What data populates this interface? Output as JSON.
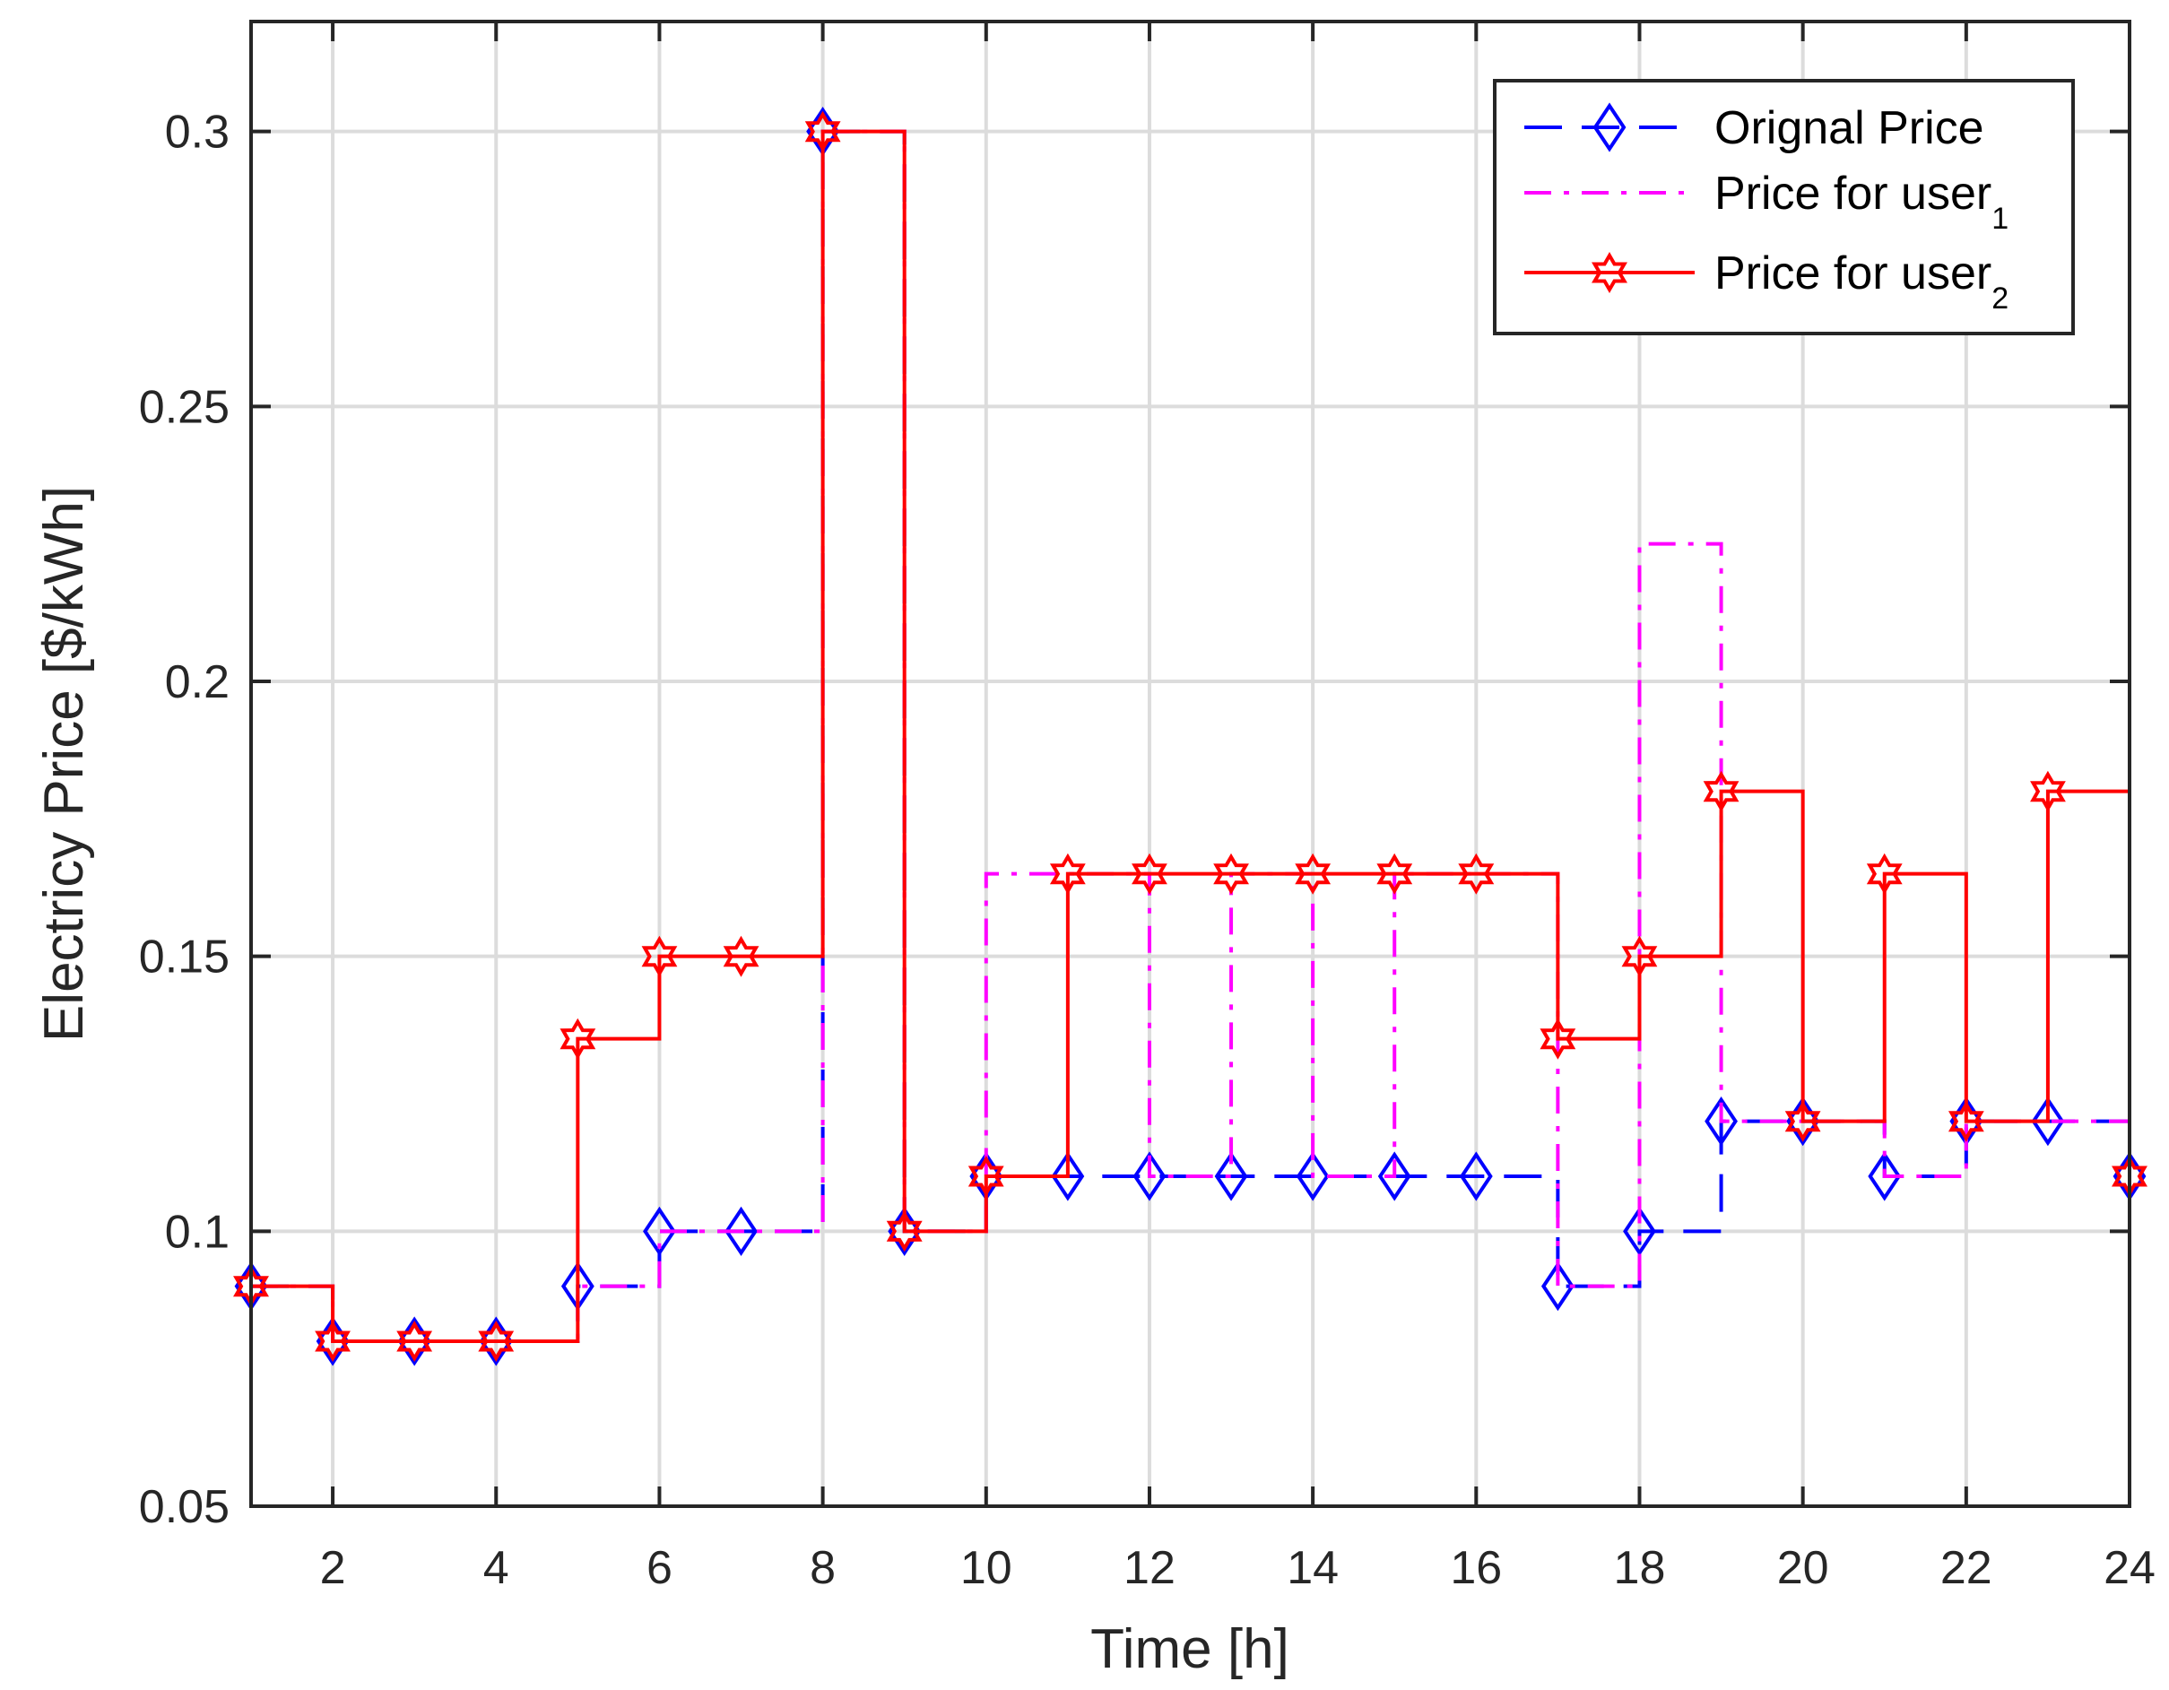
{
  "chart_data": {
    "type": "line",
    "step": "post",
    "xlabel": "Time [h]",
    "ylabel": "Electricy Price [$/kWh]",
    "xlim": [
      1,
      24
    ],
    "ylim": [
      0.05,
      0.32
    ],
    "xticks": [
      2,
      4,
      6,
      8,
      10,
      12,
      14,
      16,
      18,
      20,
      22,
      24
    ],
    "xtick_labels": [
      "2",
      "4",
      "6",
      "8",
      "10",
      "12",
      "14",
      "16",
      "18",
      "20",
      "22",
      "24"
    ],
    "yticks": [
      0.05,
      0.1,
      0.15,
      0.2,
      0.25,
      0.3
    ],
    "ytick_labels": [
      "0.05",
      "0.1",
      "0.15",
      "0.2",
      "0.25",
      "0.3"
    ],
    "grid": true,
    "legend_position": "top-right",
    "x": [
      1,
      2,
      3,
      4,
      5,
      6,
      7,
      8,
      9,
      10,
      11,
      12,
      13,
      14,
      15,
      16,
      17,
      18,
      19,
      20,
      21,
      22,
      23,
      24
    ],
    "series": [
      {
        "name": "Orignal Price",
        "color": "#0000ff",
        "line_style": "dashed",
        "marker": "diamond",
        "values": [
          0.09,
          0.08,
          0.08,
          0.08,
          0.09,
          0.1,
          0.1,
          0.3,
          0.1,
          0.11,
          0.11,
          0.11,
          0.11,
          0.11,
          0.11,
          0.11,
          0.09,
          0.1,
          0.12,
          0.12,
          0.11,
          0.12,
          0.12,
          0.11
        ]
      },
      {
        "name": "Price for user",
        "name_subscript": "1",
        "color": "#ff00ff",
        "line_style": "dash-dot",
        "marker": "none",
        "values": [
          0.09,
          0.08,
          0.08,
          0.08,
          0.09,
          0.1,
          0.1,
          0.3,
          0.1,
          0.165,
          0.165,
          0.11,
          0.165,
          0.11,
          0.165,
          0.165,
          0.09,
          0.225,
          0.12,
          0.12,
          0.11,
          0.12,
          0.12,
          0.11
        ]
      },
      {
        "name": "Price for user",
        "name_subscript": "2",
        "color": "#ff0000",
        "line_style": "solid",
        "marker": "hexagram",
        "values": [
          0.09,
          0.08,
          0.08,
          0.08,
          0.135,
          0.15,
          0.15,
          0.3,
          0.1,
          0.11,
          0.165,
          0.165,
          0.165,
          0.165,
          0.165,
          0.165,
          0.135,
          0.15,
          0.18,
          0.12,
          0.165,
          0.12,
          0.18,
          0.11
        ]
      }
    ]
  }
}
